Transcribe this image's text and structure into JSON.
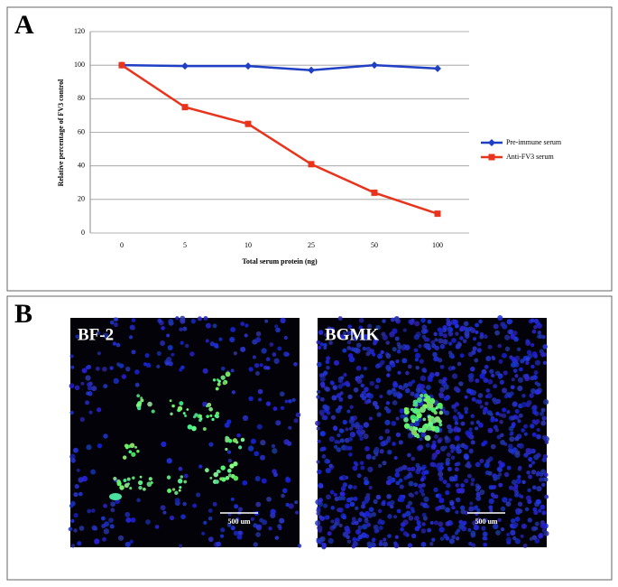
{
  "panel_a_label": "A",
  "chart_data": {
    "type": "line",
    "x_label": "Total serum protein (ng)",
    "y_label": "Relative percentage of FV3 control",
    "categories": [
      "0",
      "5",
      "10",
      "25",
      "50",
      "100"
    ],
    "series": [
      {
        "name": "Pre-immune serum",
        "color": "#1f3fc4",
        "marker": "diamond",
        "values": [
          100,
          99.5,
          99.5,
          97,
          100,
          98
        ]
      },
      {
        "name": "Anti-FV3 serum",
        "color": "#e8341c",
        "marker": "square",
        "values": [
          100,
          75,
          65,
          41,
          24,
          11.5
        ]
      }
    ],
    "ylim": [
      0,
      120
    ],
    "yticks": [
      0,
      20,
      40,
      60,
      80,
      100,
      120
    ],
    "grid": true,
    "legend": "right"
  },
  "panel_b": {
    "label": "B",
    "images": [
      {
        "label": "BF-2",
        "scale_bar": "500 um"
      },
      {
        "label": "BGMK",
        "scale_bar": "500 um"
      }
    ]
  }
}
